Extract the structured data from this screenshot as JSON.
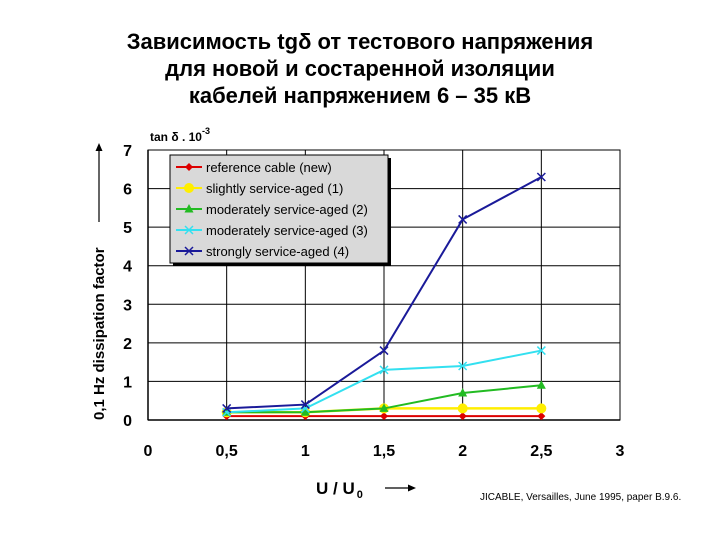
{
  "title_lines": [
    "Зависимость tgδ от тестового напряжения",
    "для новой и состаренной изоляции",
    "кабелей напряжением 6 – 35 кВ"
  ],
  "source_note": "JICABLE, Versailles, June 1995, paper B.9.6.",
  "chart_data": {
    "type": "line",
    "ylabel": "0,1 Hz dissipation factor",
    "yunit_label": "tan δ . 10",
    "yunit_exp": "-3",
    "xlabel": "U / U",
    "xlabel_sub": "0",
    "xlim": [
      0,
      3
    ],
    "ylim": [
      0,
      7
    ],
    "xticks": [
      "0",
      "0,5",
      "1",
      "1,5",
      "2",
      "2,5",
      "3"
    ],
    "yticks": [
      "0",
      "1",
      "2",
      "3",
      "4",
      "5",
      "6",
      "7"
    ],
    "grid": true,
    "legend_position": "top-left",
    "x": [
      0.5,
      1,
      1.5,
      2,
      2.5
    ],
    "series": [
      {
        "name": "reference cable (new)",
        "color": "#dd0000",
        "marker": "diamond",
        "values": [
          0.1,
          0.1,
          0.1,
          0.1,
          0.1
        ]
      },
      {
        "name": "slightly service-aged (1)",
        "color": "#ffee00",
        "marker": "circle",
        "values": [
          0.2,
          0.2,
          0.3,
          0.3,
          0.3
        ]
      },
      {
        "name": "moderately service-aged (2)",
        "color": "#22bb22",
        "marker": "triangle",
        "values": [
          0.2,
          0.2,
          0.3,
          0.7,
          0.9
        ]
      },
      {
        "name": "moderately service-aged (3)",
        "color": "#33e0f0",
        "marker": "x",
        "values": [
          0.2,
          0.3,
          1.3,
          1.4,
          1.8
        ]
      },
      {
        "name": "strongly service-aged (4)",
        "color": "#1a1a99",
        "marker": "x",
        "values": [
          0.3,
          0.4,
          1.8,
          5.2,
          6.3
        ]
      }
    ]
  }
}
